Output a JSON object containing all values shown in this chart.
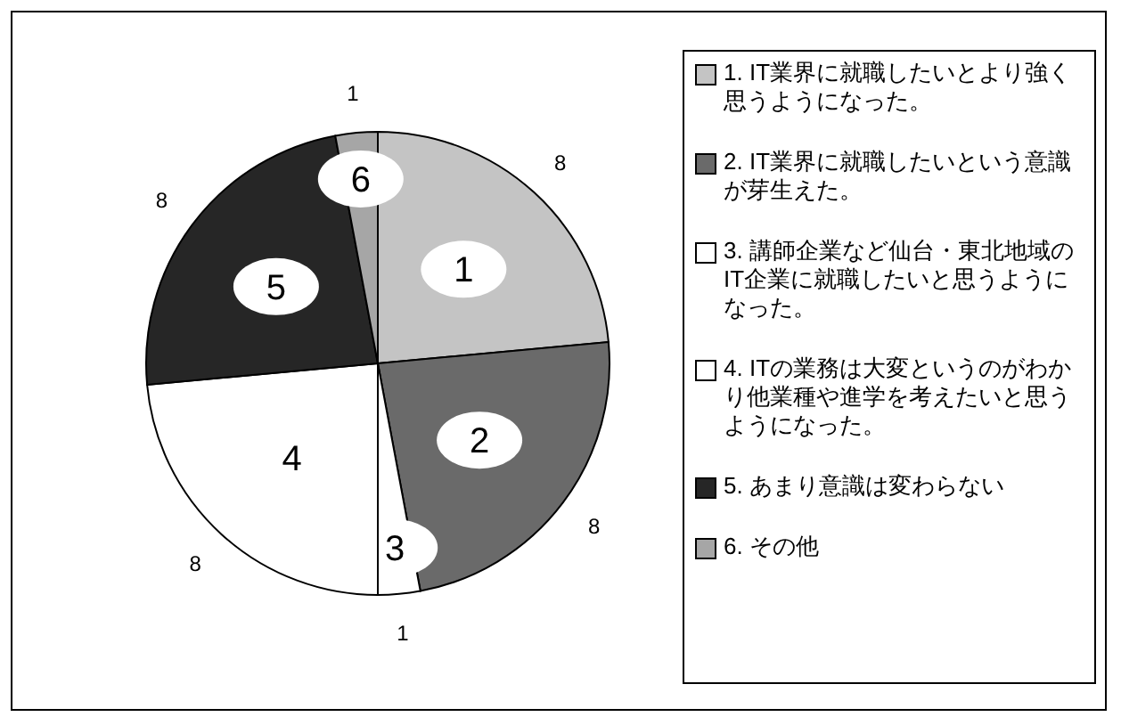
{
  "chart_data": {
    "type": "pie",
    "categories": [
      "1. IT業界に就職したいとより強く思うようになった。",
      "2. IT業界に就職したいという意識が芽生えた。",
      "3. 講師企業など仙台・東北地域のIT企業に就職したいと思うようになった。",
      "4. ITの業務は大変というのがわかり他業種や進学を考えたいと思うようになった。",
      "5. あまり意識は変わらない",
      "6. その他"
    ],
    "values": [
      8,
      8,
      1,
      8,
      8,
      1
    ],
    "colors": [
      "#c4c4c4",
      "#6a6a6a",
      "#ffffff",
      "#ffffff",
      "#262626",
      "#a6a6a6"
    ],
    "annotations": [
      "1",
      "2",
      "3",
      "4",
      "5",
      "6"
    ],
    "data_labels": true,
    "legend": "right"
  }
}
